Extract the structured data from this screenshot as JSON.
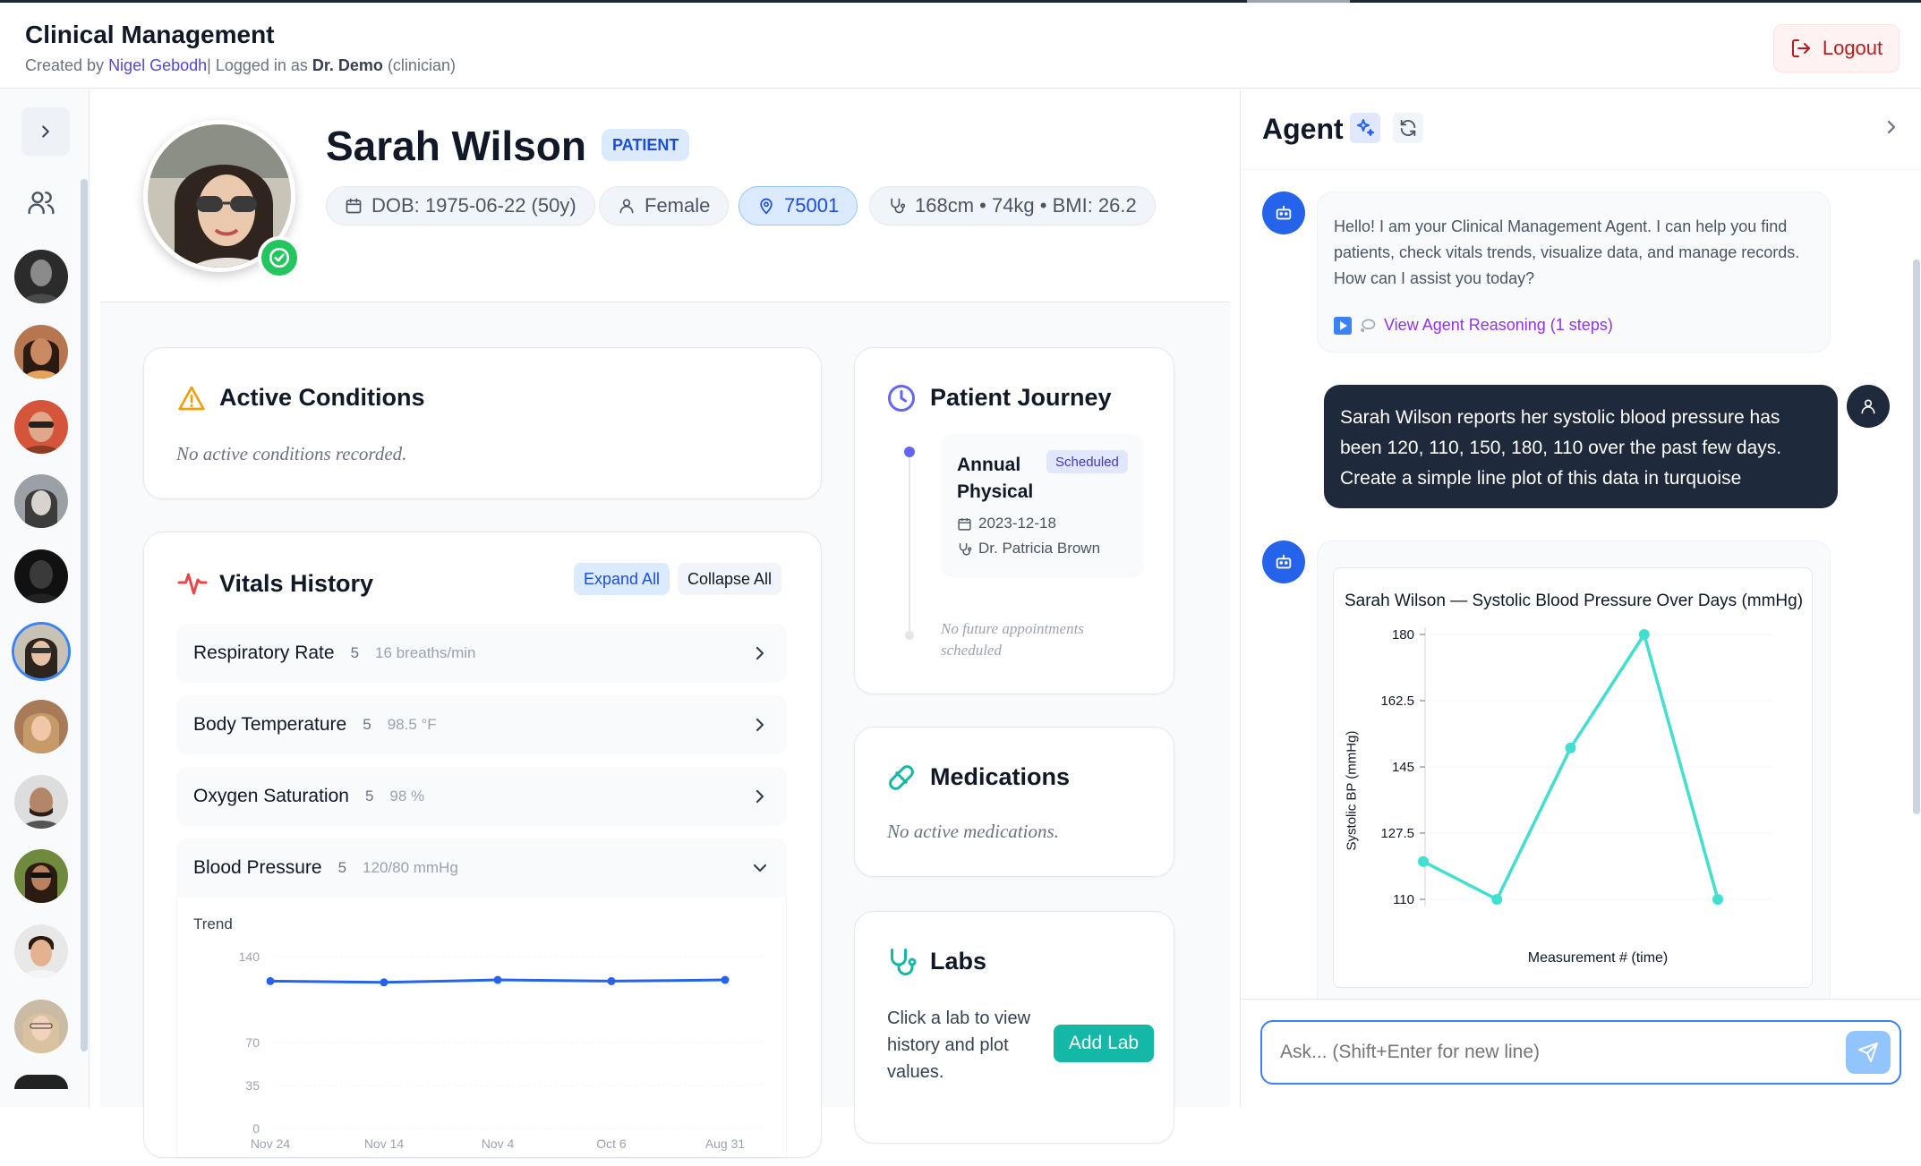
{
  "app": {
    "title": "Clinical Management",
    "created_by_prefix": "Created by ",
    "author": "Nigel Gebodh",
    "logged_prefix": "| Logged in as ",
    "user": "Dr. Demo",
    "role": " (clinician)",
    "logout_label": "Logout"
  },
  "patient": {
    "name": "Sarah Wilson",
    "badge": "PATIENT",
    "dob": "DOB: 1975-06-22 (50y)",
    "gender": "Female",
    "zip": "75001",
    "body": "168cm • 74kg • BMI: 26.2"
  },
  "conditions": {
    "title": "Active Conditions",
    "empty": "No active conditions recorded."
  },
  "vitals": {
    "title": "Vitals History",
    "expand_label": "Expand All",
    "collapse_label": "Collapse All",
    "rows": [
      {
        "name": "Respiratory Rate",
        "count": "5",
        "value": "16 breaths/min"
      },
      {
        "name": "Body Temperature",
        "count": "5",
        "value": "98.5 °F"
      },
      {
        "name": "Oxygen Saturation",
        "count": "5",
        "value": "98 %"
      },
      {
        "name": "Blood Pressure",
        "count": "5",
        "value": "120/80 mmHg"
      }
    ],
    "trend_label": "Trend"
  },
  "journey": {
    "title": "Patient Journey",
    "event_title": "Annual Physical",
    "event_status": "Scheduled",
    "event_date": "2023-12-18",
    "event_doctor": "Dr. Patricia Brown",
    "no_future": "No future appointments scheduled"
  },
  "medications": {
    "title": "Medications",
    "empty": "No active medications."
  },
  "labs": {
    "title": "Labs",
    "text": "Click a lab to view history and plot values.",
    "add_label": "Add Lab"
  },
  "agent": {
    "title": "Agent",
    "greeting": "Hello! I am your Clinical Management Agent. I can help you find patients, check vitals trends, visualize data, and manage records. How can I assist you today?",
    "reasoning_label": "View Agent Reasoning (1 steps)",
    "user_message": "Sarah Wilson reports her systolic blood pressure has been 120, 110, 150, 180, 110 over the past few days. Create a simple line plot of this data in turquoise",
    "input_placeholder": "Ask... (Shift+Enter for new line)"
  },
  "colors": {
    "accent": "#2563eb",
    "turquoise": "#40e0d0",
    "add_lab": "#14b8a6",
    "logout": "#b91c1c"
  },
  "chart_data": [
    {
      "type": "line",
      "title": "",
      "label": "Trend",
      "x": [
        "Nov 24",
        "Nov 14",
        "Nov 4",
        "Oct 6",
        "Aug 31"
      ],
      "series": [
        {
          "values": [
            120,
            119,
            121,
            120,
            121
          ]
        }
      ],
      "yticks": [
        "0",
        "35",
        "70",
        "140"
      ],
      "ylim": [
        0,
        140
      ],
      "color": "#2563eb"
    },
    {
      "type": "line",
      "title": "Sarah Wilson — Systolic Blood Pressure Over Days (mmHg)",
      "xlabel": "Measurement # (time)",
      "ylabel": "Systolic BP (mmHg)",
      "x": [
        1,
        2,
        3,
        4,
        5
      ],
      "series": [
        {
          "values": [
            120,
            110,
            150,
            180,
            110
          ]
        }
      ],
      "yticks": [
        "110",
        "127.5",
        "145",
        "162.5",
        "180"
      ],
      "ylim": [
        110,
        180
      ],
      "color": "#40e0d0",
      "grid": true
    }
  ]
}
